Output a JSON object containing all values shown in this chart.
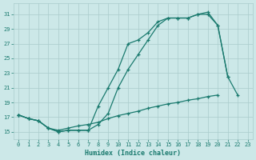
{
  "line1_x": [
    0,
    1,
    2,
    3,
    4,
    5,
    6,
    7,
    8,
    9,
    10,
    11,
    12,
    13,
    14,
    15,
    16,
    17,
    18,
    19,
    20,
    21,
    22,
    23
  ],
  "line1_y": [
    17.3,
    16.8,
    16.5,
    15.5,
    15.0,
    15.2,
    15.2,
    15.2,
    18.5,
    21.0,
    23.5,
    27.0,
    27.5,
    28.5,
    30.0,
    30.5,
    30.5,
    30.5,
    31.0,
    31.0,
    29.5,
    22.5,
    null,
    null
  ],
  "line2_x": [
    0,
    1,
    2,
    3,
    4,
    5,
    6,
    7,
    8,
    9,
    10,
    11,
    12,
    13,
    14,
    15,
    16,
    17,
    18,
    19,
    20,
    21,
    22,
    23
  ],
  "line2_y": [
    17.3,
    16.8,
    16.5,
    15.5,
    15.0,
    15.2,
    15.2,
    15.2,
    16.0,
    17.5,
    21.0,
    23.5,
    25.5,
    27.5,
    29.5,
    30.5,
    30.5,
    30.5,
    31.0,
    31.3,
    29.5,
    22.5,
    20.0,
    null
  ],
  "line3_x": [
    0,
    1,
    2,
    3,
    4,
    5,
    6,
    7,
    8,
    9,
    10,
    11,
    12,
    13,
    14,
    15,
    16,
    17,
    18,
    19,
    20,
    21,
    22,
    23
  ],
  "line3_y": [
    17.3,
    16.8,
    16.5,
    15.5,
    15.2,
    15.5,
    15.8,
    16.0,
    16.3,
    16.8,
    17.2,
    17.5,
    17.8,
    18.2,
    18.5,
    18.8,
    19.0,
    19.3,
    19.5,
    19.8,
    20.0,
    null,
    null,
    null
  ],
  "line_color": "#1a7a6e",
  "bg_color": "#cce8e8",
  "grid_color": "#aacccc",
  "xlabel": "Humidex (Indice chaleur)",
  "yticks": [
    15,
    17,
    19,
    21,
    23,
    25,
    27,
    29,
    31
  ],
  "xticks": [
    0,
    1,
    2,
    3,
    4,
    5,
    6,
    7,
    8,
    9,
    10,
    11,
    12,
    13,
    14,
    15,
    16,
    17,
    18,
    19,
    20,
    21,
    22,
    23
  ],
  "xlim": [
    -0.5,
    23.5
  ],
  "ylim": [
    14.0,
    32.5
  ]
}
